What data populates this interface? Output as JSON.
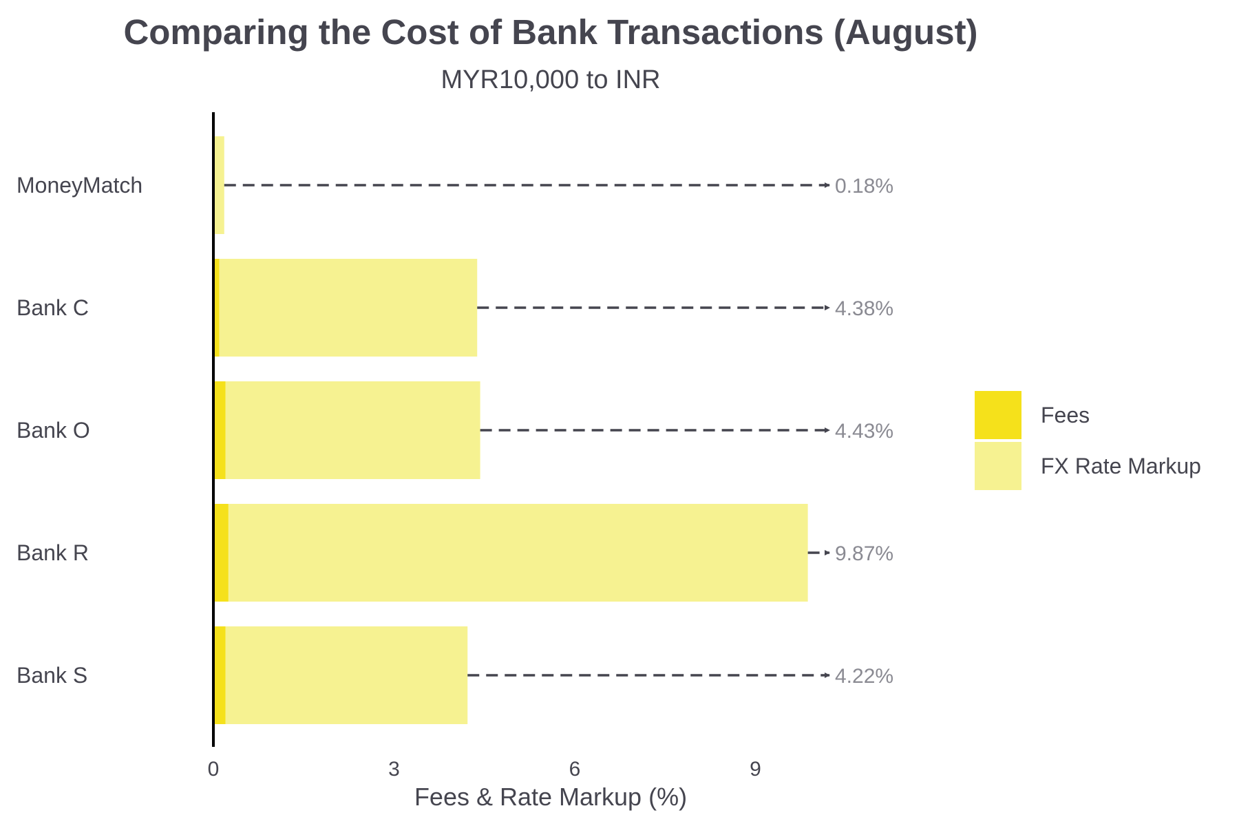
{
  "chart_data": {
    "type": "bar",
    "orientation": "horizontal",
    "stacked": true,
    "title": "Comparing the Cost of Bank Transactions (August)",
    "subtitle": "MYR10,000 to INR",
    "xlabel": "Fees & Rate Markup (%)",
    "xlim": [
      0,
      11
    ],
    "xticks": [
      "0",
      "3",
      "6",
      "9"
    ],
    "xtick_values": [
      0,
      3,
      6,
      9
    ],
    "categories": [
      "MoneyMatch",
      "Bank C",
      "Bank O",
      "Bank R",
      "Bank S"
    ],
    "series": [
      {
        "name": "Fees",
        "color": "#f5e11b",
        "values": [
          0.0,
          0.1,
          0.2,
          0.25,
          0.2
        ]
      },
      {
        "name": "FX Rate Markup",
        "color": "#f6f291",
        "values": [
          0.18,
          4.28,
          4.23,
          9.62,
          4.02
        ]
      }
    ],
    "totals": [
      0.18,
      4.38,
      4.43,
      9.87,
      4.22
    ],
    "total_labels": [
      "0.18%",
      "4.38%",
      "4.43%",
      "9.87%",
      "4.22%"
    ],
    "legend_position": "right",
    "grid": false
  }
}
